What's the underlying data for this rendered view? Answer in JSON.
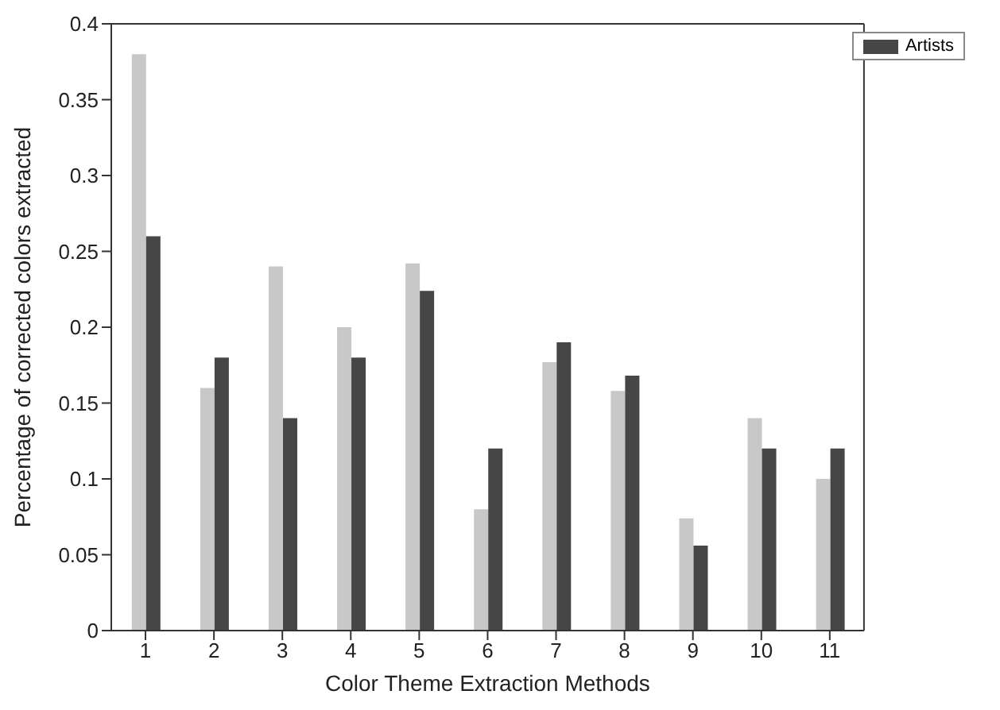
{
  "chart_data": {
    "type": "bar",
    "xlabel": "Color Theme Extraction Methods",
    "ylabel": "Percentage of corrected colors extracted",
    "categories": [
      "1",
      "2",
      "3",
      "4",
      "5",
      "6",
      "7",
      "8",
      "9",
      "10",
      "11"
    ],
    "series": [
      {
        "color": "#c8c8c8",
        "values": [
          0.38,
          0.16,
          0.24,
          0.2,
          0.242,
          0.08,
          0.177,
          0.158,
          0.074,
          0.14,
          0.1
        ]
      },
      {
        "name": "Artists",
        "color": "#464646",
        "values": [
          0.26,
          0.18,
          0.14,
          0.18,
          0.224,
          0.12,
          0.19,
          0.168,
          0.056,
          0.12,
          0.12
        ]
      }
    ],
    "ylim": [
      0,
      0.4
    ],
    "yticks": [
      0,
      0.05,
      0.1,
      0.15,
      0.2,
      0.25,
      0.3,
      0.35,
      0.4
    ],
    "legend": "top right"
  }
}
